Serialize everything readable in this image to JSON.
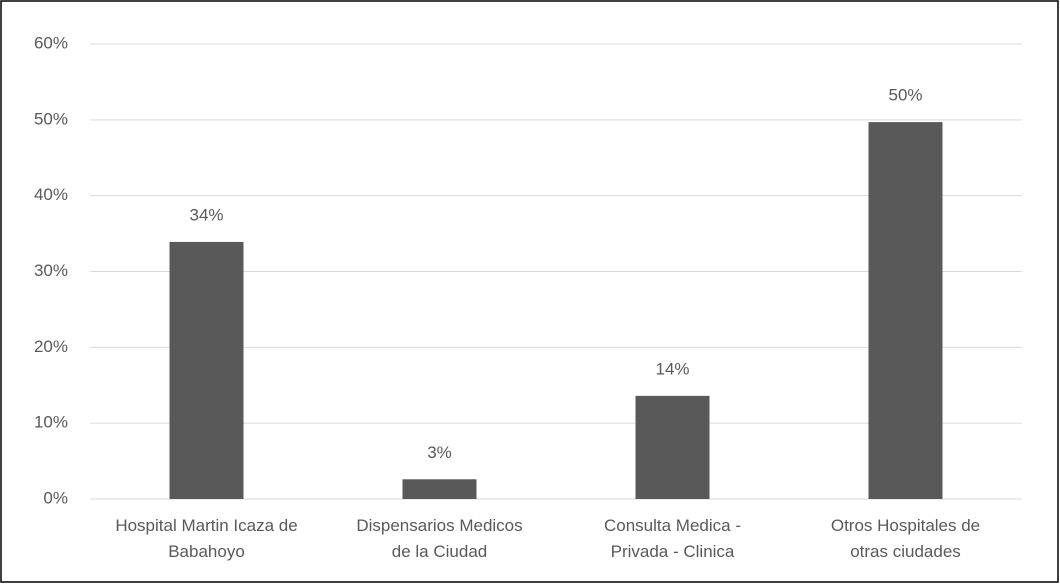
{
  "chart_data": {
    "type": "bar",
    "categories": [
      "Hospital Martin Icaza de\nBabahoyo",
      "Dispensarios Medicos\nde la Ciudad",
      "Consulta Medica -\nPrivada - Clinica",
      "Otros Hospitales de\notras ciudades"
    ],
    "values": [
      33.9,
      2.6,
      13.6,
      49.7
    ],
    "value_labels": [
      "34%",
      "3%",
      "14%",
      "50%"
    ],
    "color": "#595959",
    "ylim": [
      0,
      60
    ],
    "yticks": [
      {
        "value": 0,
        "label": "0%"
      },
      {
        "value": 10,
        "label": "10%"
      },
      {
        "value": 20,
        "label": "20%"
      },
      {
        "value": 30,
        "label": "30%"
      },
      {
        "value": 40,
        "label": "40%"
      },
      {
        "value": 50,
        "label": "50%"
      },
      {
        "value": 60,
        "label": "60%"
      }
    ],
    "grid": true
  }
}
